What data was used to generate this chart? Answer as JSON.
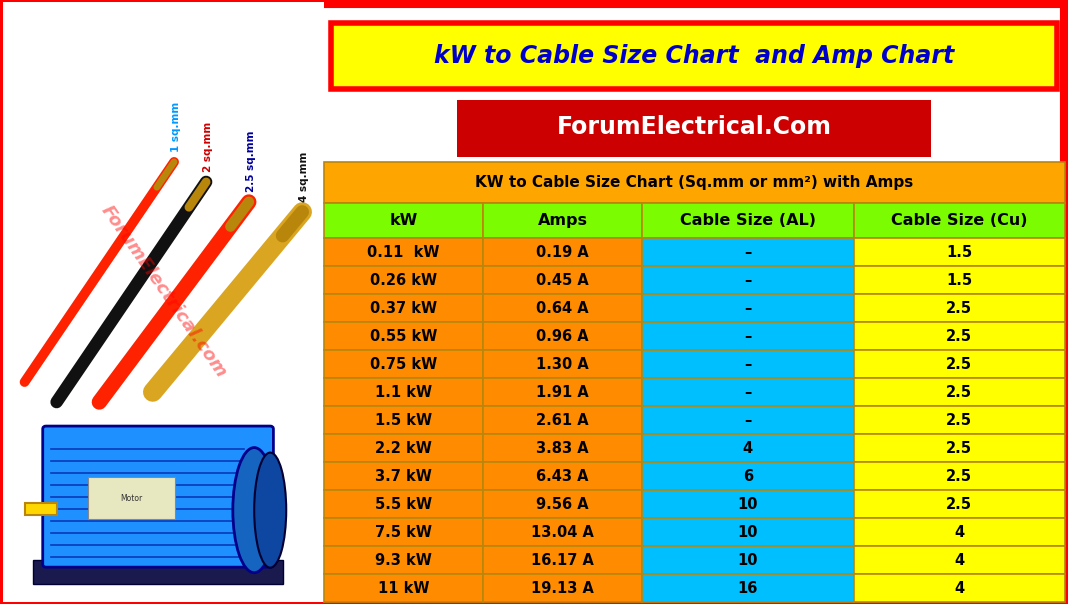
{
  "title": "kW to Cable Size Chart  and Amp Chart",
  "subtitle": "ForumElectrical.Com",
  "table_title": "KW to Cable Size Chart (Sq.mm or mm²) with Amps",
  "col_headers": [
    "kW",
    "Amps",
    "Cable Size (AL)",
    "Cable Size (Cu)"
  ],
  "rows": [
    [
      "0.11  kW",
      "0.19 A",
      "–",
      "1.5"
    ],
    [
      "0.26 kW",
      "0.45 A",
      "–",
      "1.5"
    ],
    [
      "0.37 kW",
      "0.64 A",
      "–",
      "2.5"
    ],
    [
      "0.55 kW",
      "0.96 A",
      "–",
      "2.5"
    ],
    [
      "0.75 kW",
      "1.30 A",
      "–",
      "2.5"
    ],
    [
      "1.1 kW",
      "1.91 A",
      "–",
      "2.5"
    ],
    [
      "1.5 kW",
      "2.61 A",
      "–",
      "2.5"
    ],
    [
      "2.2 kW",
      "3.83 A",
      "4",
      "2.5"
    ],
    [
      "3.7 kW",
      "6.43 A",
      "6",
      "2.5"
    ],
    [
      "5.5 kW",
      "9.56 A",
      "10",
      "2.5"
    ],
    [
      "7.5 kW",
      "13.04 A",
      "10",
      "4"
    ],
    [
      "9.3 kW",
      "16.17 A",
      "10",
      "4"
    ],
    [
      "11 kW",
      "19.13 A",
      "16",
      "4"
    ]
  ],
  "outer_border_color": "#FF0000",
  "title_bg": "#FFFF00",
  "title_color": "#0000CC",
  "subtitle_bg": "#CC0000",
  "subtitle_color": "#FFFFFF",
  "table_title_bg": "#FFA500",
  "table_title_color": "#000000",
  "col_header_bg": "#7CFC00",
  "col_header_color": "#000000",
  "row_bg_kw_amps": "#FF8C00",
  "row_bg_al": "#00BFFF",
  "row_bg_cu": "#FFFF00",
  "row_text_color": "#000000",
  "table_border_color": "#B8860B",
  "image_bg": "#FFFFFF",
  "cable_labels": [
    "1 sq.mm",
    "2 sq.mm",
    "2.5 sq.mm",
    "4 sq.mm"
  ],
  "cable_label_colors": [
    "#0000FF",
    "#CC0000",
    "#000080",
    "#000000"
  ],
  "cable_colors": [
    "#FF2200",
    "#111111",
    "#FF2200",
    "#DAA520"
  ],
  "watermark_color": "#FF0000",
  "watermark_text": "ForumElectrical.com"
}
